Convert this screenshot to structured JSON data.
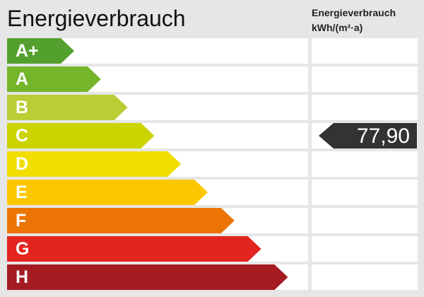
{
  "title": "Energieverbrauch",
  "unit_label": {
    "line1": "Energieverbrauch",
    "line2": "kWh/(m²·a)"
  },
  "classes": [
    {
      "label": "A+",
      "color": "#54a02e"
    },
    {
      "label": "A",
      "color": "#75b52a"
    },
    {
      "label": "B",
      "color": "#b9cd35"
    },
    {
      "label": "C",
      "color": "#cbd300"
    },
    {
      "label": "D",
      "color": "#f1de00"
    },
    {
      "label": "E",
      "color": "#fdc700"
    },
    {
      "label": "F",
      "color": "#ec7404"
    },
    {
      "label": "G",
      "color": "#e3241f"
    },
    {
      "label": "H",
      "color": "#a41b22"
    }
  ],
  "indicator": {
    "value": "77,90",
    "class": "C",
    "color": "#333333"
  }
}
